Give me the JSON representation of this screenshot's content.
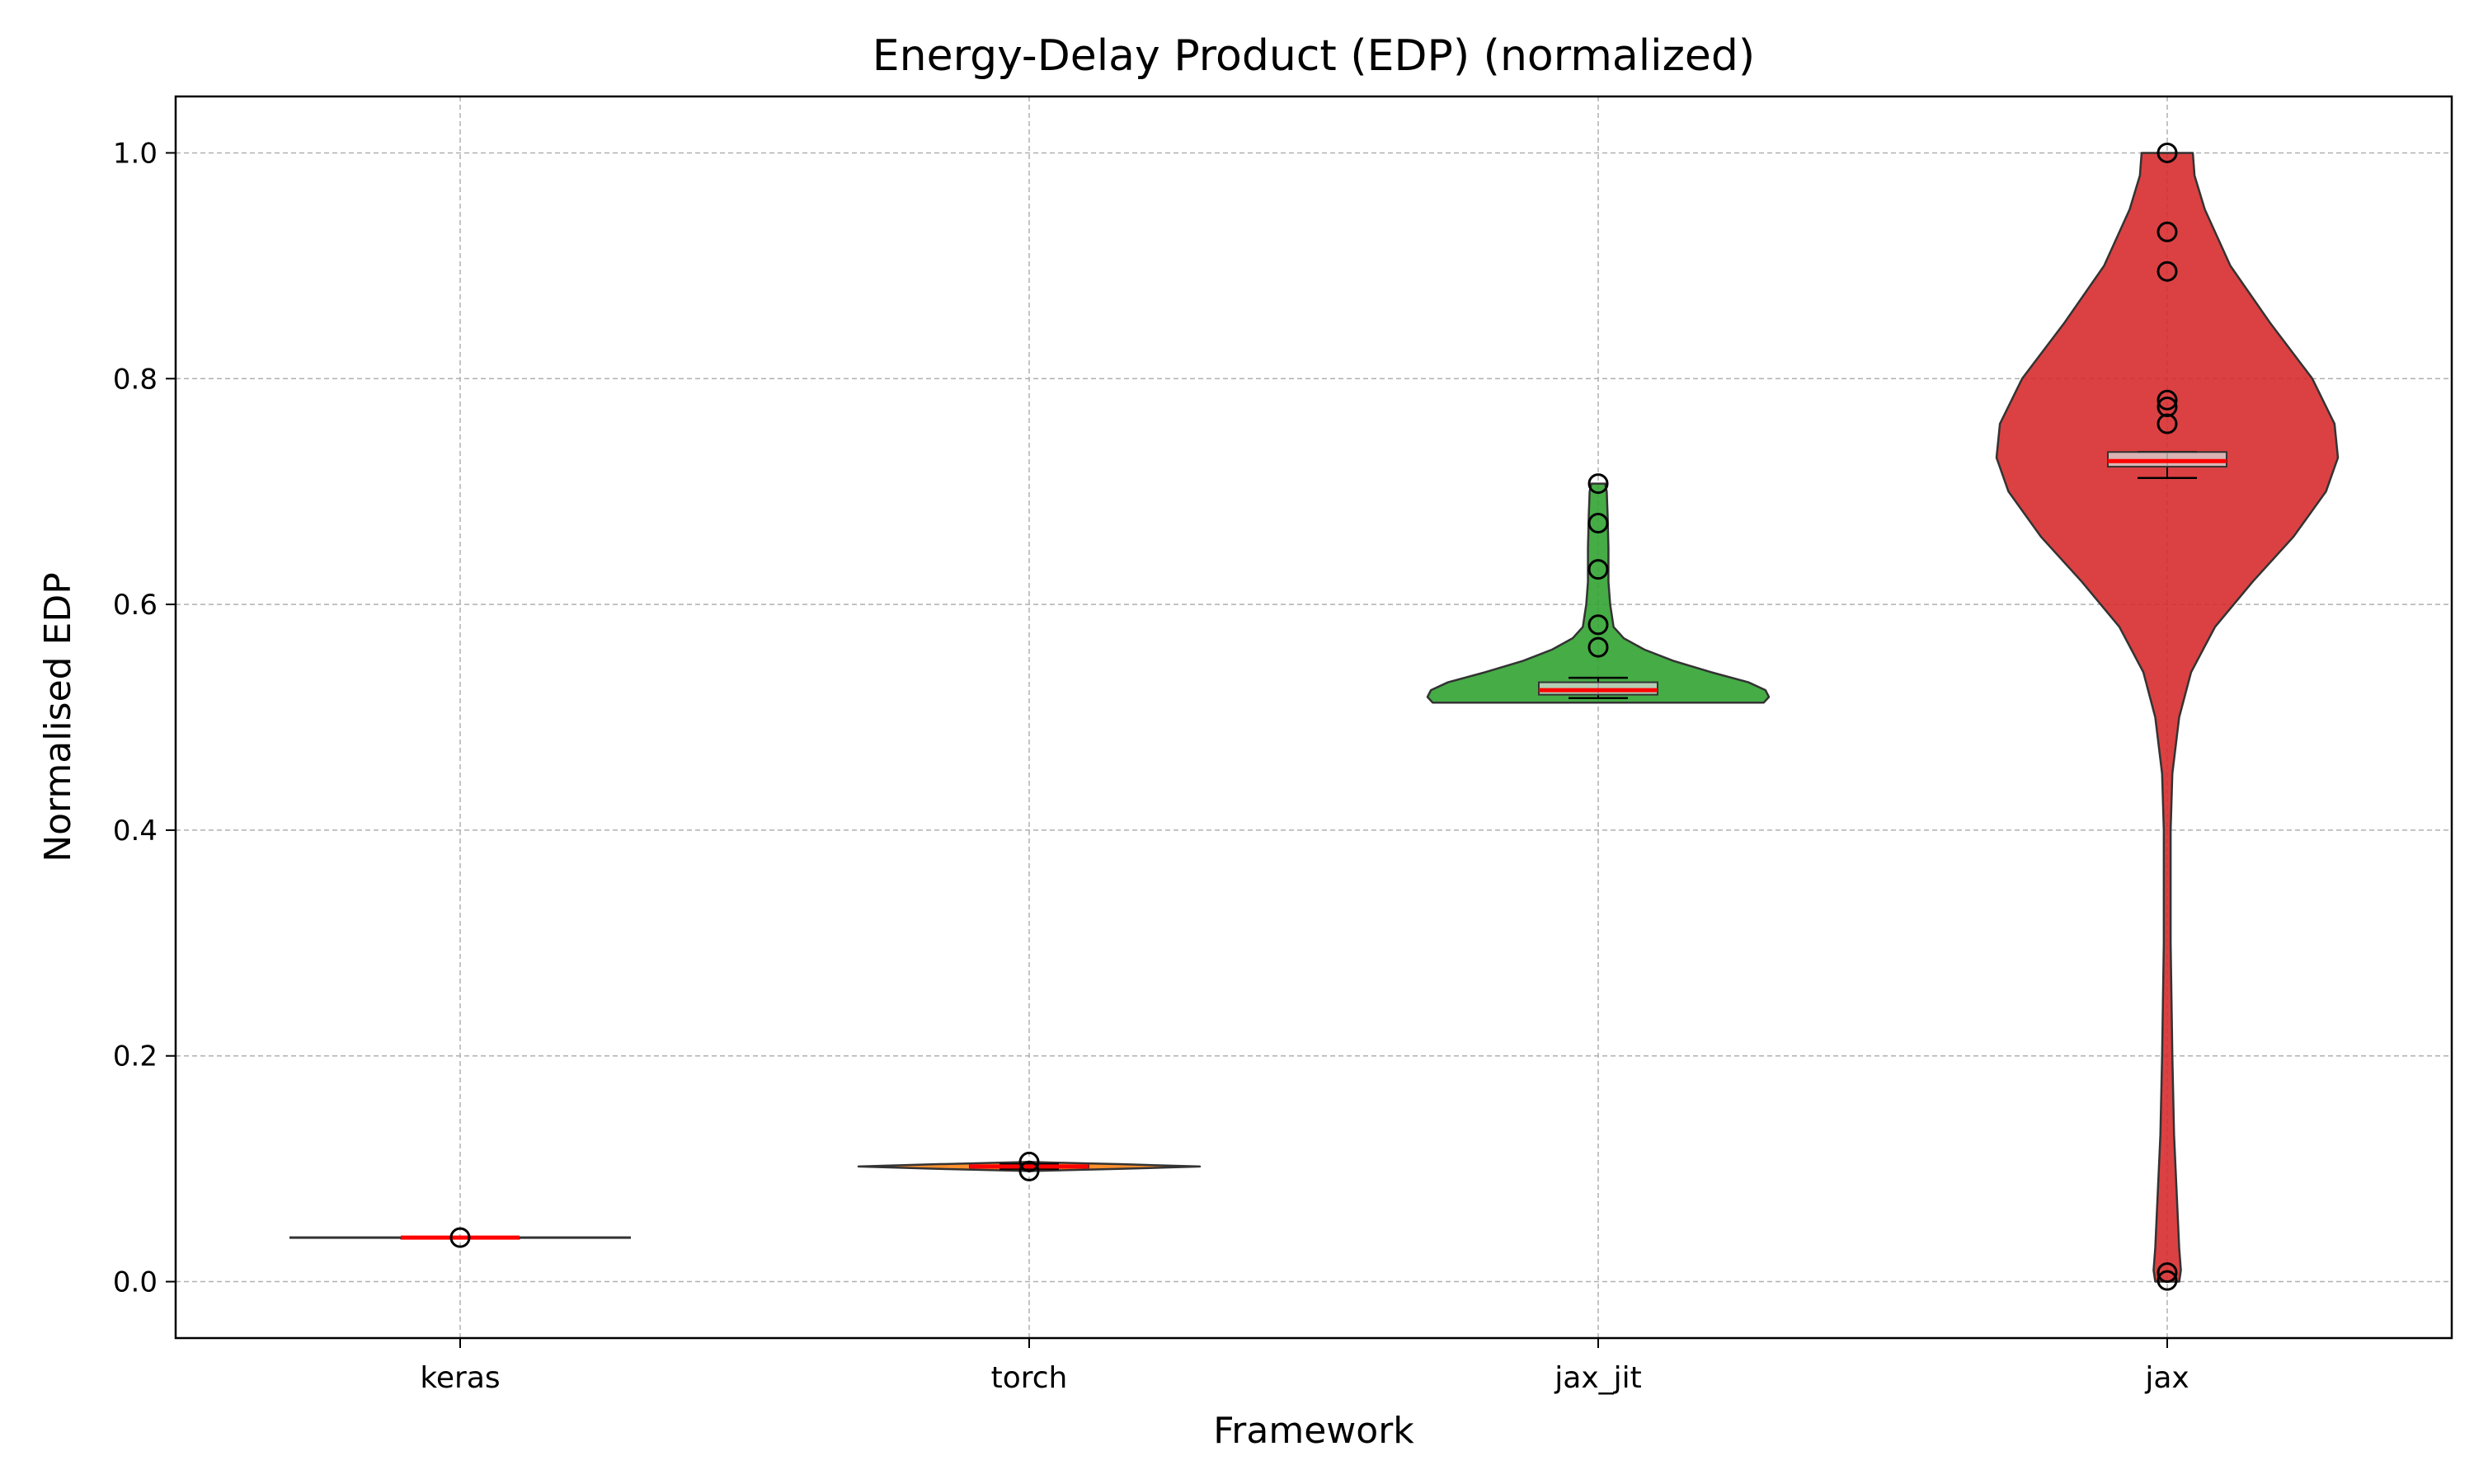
{
  "chart_data": {
    "type": "violin",
    "title": "Energy-Delay Product (EDP) (normalized)",
    "xlabel": "Framework",
    "ylabel": "Normalised EDP",
    "categories": [
      "keras",
      "torch",
      "jax_jit",
      "jax"
    ],
    "ylim": [
      -0.05,
      1.05
    ],
    "yticks": [
      0.0,
      0.2,
      0.4,
      0.6,
      0.8,
      1.0
    ],
    "ytick_labels": [
      "0.0",
      "0.2",
      "0.4",
      "0.6",
      "0.8",
      "1.0"
    ],
    "grid": true,
    "grid_style": "dashed",
    "legend": false,
    "colors": {
      "keras": "#1f77b4",
      "torch": "#ff7f0e",
      "jax_jit": "#2ca02c",
      "jax": "#d62728",
      "median": "#ff0000",
      "box_fill": "#d9d9d9",
      "outline": "#333333"
    },
    "series": [
      {
        "category": "keras",
        "range": [
          0.039,
          0.039
        ],
        "box": {
          "q1": 0.039,
          "median": 0.039,
          "q3": 0.039,
          "whisker_low": 0.039,
          "whisker_high": 0.039
        },
        "outliers": [
          0.039
        ],
        "density": [
          [
            0.039,
            1.0
          ]
        ]
      },
      {
        "category": "torch",
        "range": [
          0.098,
          0.106
        ],
        "box": {
          "q1": 0.101,
          "median": 0.102,
          "q3": 0.103,
          "whisker_low": 0.1,
          "whisker_high": 0.104
        },
        "outliers": [
          0.106,
          0.098
        ],
        "density": [
          [
            0.098,
            0.0
          ],
          [
            0.1,
            0.55
          ],
          [
            0.102,
            1.0
          ],
          [
            0.104,
            0.55
          ],
          [
            0.106,
            0.0
          ]
        ]
      },
      {
        "category": "jax_jit",
        "range": [
          0.513,
          0.707
        ],
        "box": {
          "q1": 0.52,
          "median": 0.524,
          "q3": 0.531,
          "whisker_low": 0.517,
          "whisker_high": 0.535
        },
        "outliers": [
          0.707,
          0.672,
          0.631,
          0.582,
          0.562
        ],
        "density": [
          [
            0.513,
            0.97
          ],
          [
            0.518,
            1.0
          ],
          [
            0.524,
            0.98
          ],
          [
            0.531,
            0.88
          ],
          [
            0.54,
            0.66
          ],
          [
            0.55,
            0.44
          ],
          [
            0.56,
            0.27
          ],
          [
            0.57,
            0.15
          ],
          [
            0.58,
            0.09
          ],
          [
            0.6,
            0.07
          ],
          [
            0.62,
            0.06
          ],
          [
            0.65,
            0.06
          ],
          [
            0.68,
            0.055
          ],
          [
            0.7,
            0.05
          ],
          [
            0.707,
            0.04
          ]
        ]
      },
      {
        "category": "jax",
        "range": [
          0.0,
          1.0
        ],
        "box": {
          "q1": 0.722,
          "median": 0.727,
          "q3": 0.735,
          "whisker_low": 0.712,
          "whisker_high": 0.735
        },
        "outliers": [
          1.0,
          0.93,
          0.895,
          0.781,
          0.775,
          0.76,
          0.008,
          0.001
        ],
        "density": [
          [
            0.0,
            0.07
          ],
          [
            0.01,
            0.08
          ],
          [
            0.03,
            0.07
          ],
          [
            0.08,
            0.055
          ],
          [
            0.13,
            0.04
          ],
          [
            0.2,
            0.03
          ],
          [
            0.3,
            0.02
          ],
          [
            0.4,
            0.02
          ],
          [
            0.45,
            0.03
          ],
          [
            0.5,
            0.07
          ],
          [
            0.54,
            0.14
          ],
          [
            0.58,
            0.28
          ],
          [
            0.62,
            0.5
          ],
          [
            0.66,
            0.74
          ],
          [
            0.7,
            0.93
          ],
          [
            0.73,
            1.0
          ],
          [
            0.76,
            0.98
          ],
          [
            0.8,
            0.85
          ],
          [
            0.85,
            0.6
          ],
          [
            0.9,
            0.37
          ],
          [
            0.95,
            0.22
          ],
          [
            0.98,
            0.16
          ],
          [
            1.0,
            0.15
          ]
        ]
      }
    ]
  }
}
